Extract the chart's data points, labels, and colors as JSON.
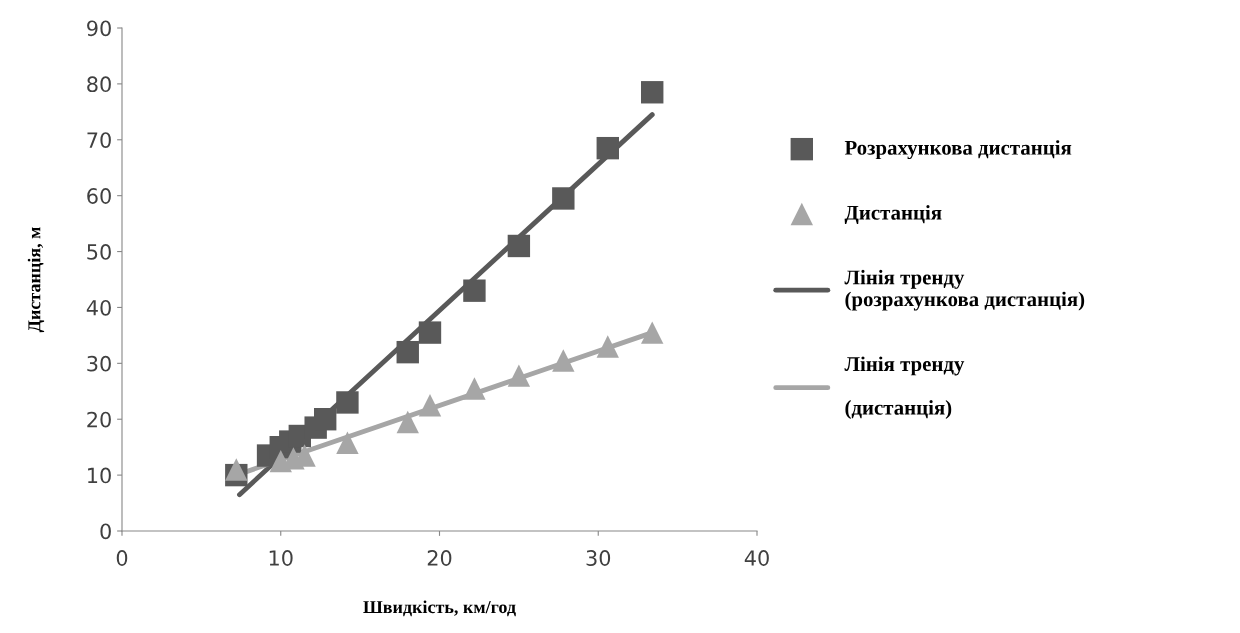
{
  "chart_data": {
    "type": "scatter",
    "xlabel": "Швидкість, км/год",
    "ylabel": "Дистанція, м",
    "xlim": [
      0,
      40
    ],
    "xticks": [
      0,
      10,
      20,
      30,
      40
    ],
    "ylim": [
      0,
      90
    ],
    "yticks": [
      0,
      10,
      20,
      30,
      40,
      50,
      60,
      70,
      80,
      90
    ],
    "grid": false,
    "legend": "right",
    "series": [
      {
        "name": "Розрахункова дистанція",
        "marker": "square",
        "color": "#595959",
        "x": [
          7.2,
          9.2,
          10.0,
          10.6,
          11.2,
          12.2,
          12.8,
          14.2,
          18.0,
          19.4,
          22.2,
          25.0,
          27.8,
          30.6,
          33.4
        ],
        "values": [
          10,
          13.5,
          15,
          16,
          17,
          18.5,
          20,
          23,
          32,
          35.5,
          43,
          51,
          59.5,
          68.5,
          78.5
        ]
      },
      {
        "name": "Дистанція",
        "marker": "triangle",
        "color": "#a6a6a6",
        "x": [
          7.2,
          10.0,
          10.8,
          11.5,
          14.2,
          18.0,
          19.4,
          22.2,
          25.0,
          27.8,
          30.6,
          33.4
        ],
        "values": [
          11,
          12.5,
          13,
          13.5,
          15.8,
          19.5,
          22.5,
          25.5,
          27.8,
          30.5,
          33,
          35.5
        ]
      },
      {
        "name": "Лінія тренду\n(розрахункова дистанція)",
        "type": "line",
        "color": "#595959",
        "x": [
          7.4,
          33.4
        ],
        "values": [
          6.5,
          74.5
        ]
      },
      {
        "name": "Лінія тренду\n\n(дистанція)",
        "type": "line",
        "color": "#a6a6a6",
        "x": [
          7.2,
          33.4
        ],
        "values": [
          10,
          35.5
        ]
      }
    ]
  }
}
